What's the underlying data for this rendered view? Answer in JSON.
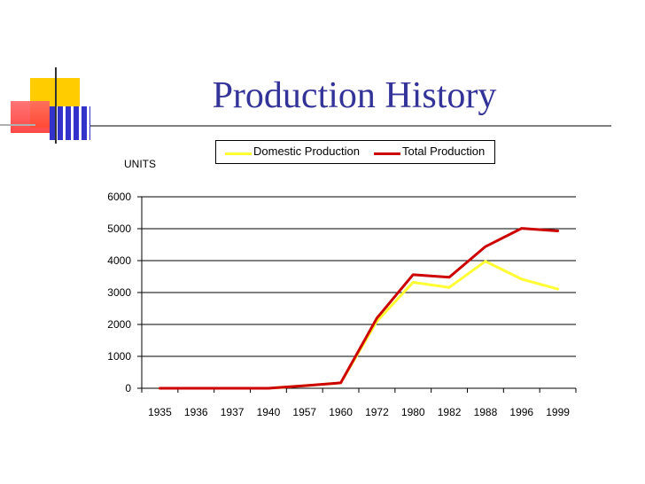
{
  "slide": {
    "title": "Production History"
  },
  "chart_data": {
    "type": "line",
    "title": "Production History",
    "ylabel": "UNITS",
    "xlabel": "",
    "categories": [
      "1935",
      "1936",
      "1937",
      "1940",
      "1957",
      "1960",
      "1972",
      "1980",
      "1982",
      "1988",
      "1996",
      "1999"
    ],
    "ylim": [
      0,
      6000
    ],
    "yticks": [
      0,
      1000,
      2000,
      3000,
      4000,
      5000,
      6000
    ],
    "grid": true,
    "legend_position": "top",
    "series": [
      {
        "name": "Domestic Production",
        "color": "#ffff33",
        "values": [
          0,
          0,
          0,
          0,
          80,
          170,
          2100,
          3320,
          3160,
          3980,
          3420,
          3110
        ]
      },
      {
        "name": "Total Production",
        "color": "#cc0000",
        "values": [
          0,
          0,
          0,
          0,
          80,
          170,
          2200,
          3560,
          3480,
          4440,
          5010,
          4930
        ]
      }
    ]
  },
  "colors": {
    "title": "#333399",
    "grid": "#000000"
  }
}
